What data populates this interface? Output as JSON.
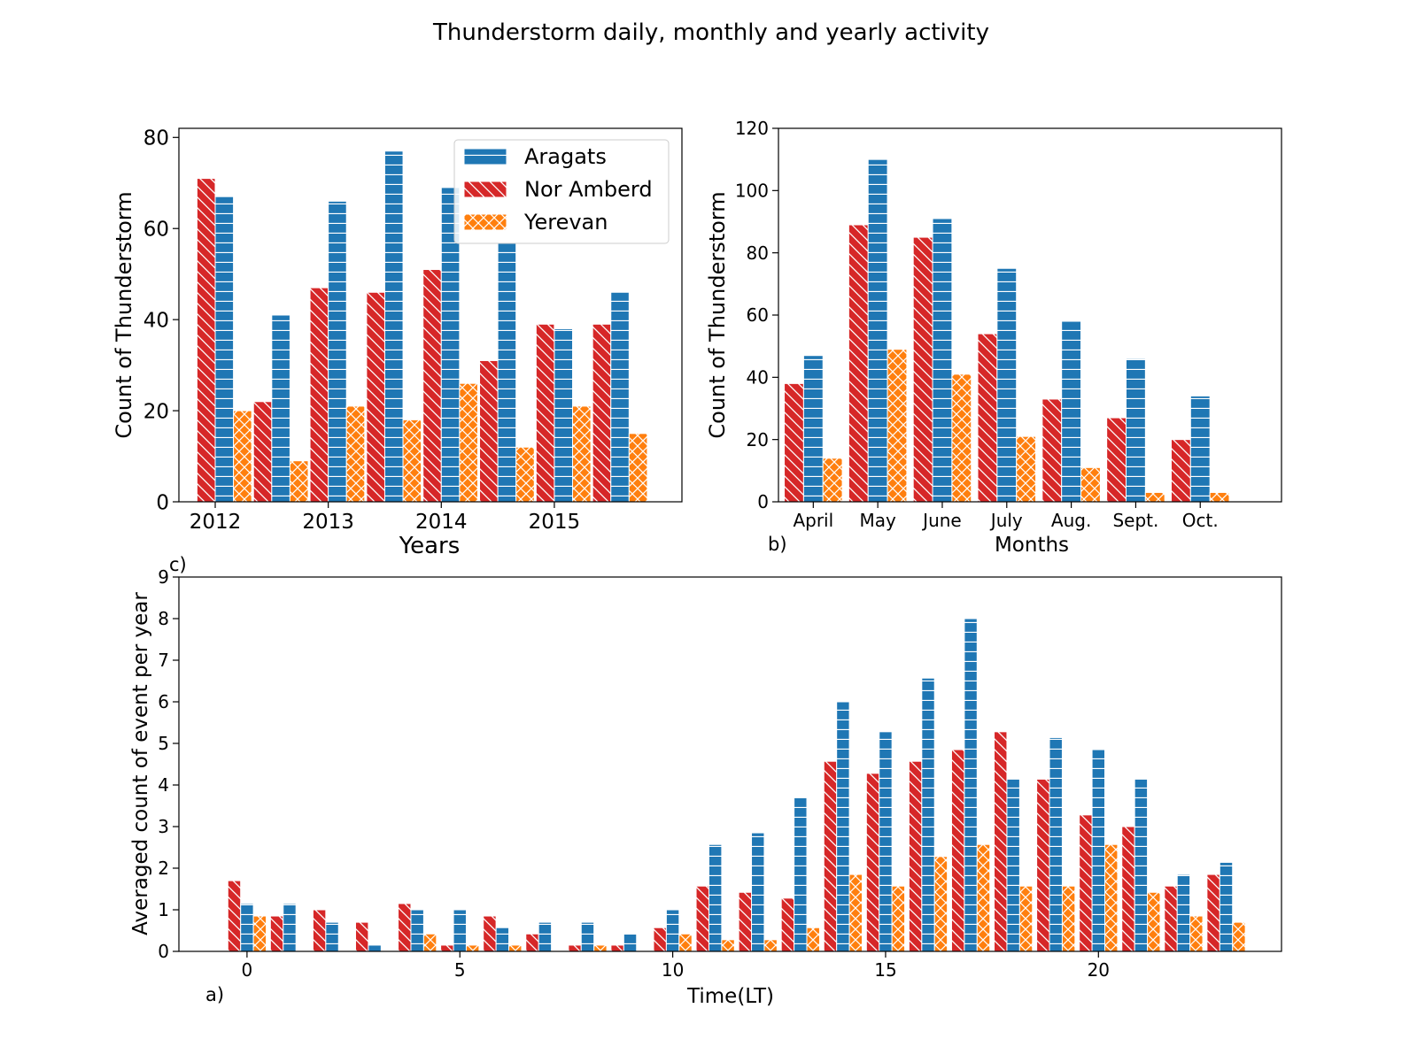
{
  "figure": {
    "title": "Thunderstorm daily, monthly and yearly activity"
  },
  "colors": {
    "Aragats": "#1f77b4",
    "Nor Amberd": "#d62728",
    "Yerevan": "#ff7f0e"
  },
  "chart_data": [
    {
      "id": "yearly",
      "type": "bar",
      "title": "",
      "xlabel": "Years",
      "ylabel": "Count of Thunderstorm",
      "panel_label": "",
      "ylim": [
        0,
        82
      ],
      "yticks": [
        0,
        20,
        40,
        60,
        80
      ],
      "xtick_labels": [
        "2012",
        "2013",
        "2014",
        "2015"
      ],
      "legend": {
        "placement": "top-right",
        "entries": [
          "Aragats",
          "Nor Amberd",
          "Yerevan"
        ]
      },
      "grid": false,
      "groups": 8,
      "series": [
        {
          "name": "Nor Amberd",
          "values": [
            71,
            22,
            47,
            46,
            51,
            31,
            39,
            39
          ]
        },
        {
          "name": "Aragats",
          "values": [
            67,
            41,
            66,
            77,
            69,
            57,
            38,
            46
          ]
        },
        {
          "name": "Yerevan",
          "values": [
            20,
            9,
            21,
            18,
            26,
            12,
            21,
            15
          ]
        }
      ]
    },
    {
      "id": "monthly",
      "type": "bar",
      "title": "",
      "xlabel": "Months",
      "ylabel": "Count of Thunderstorm",
      "panel_label": "b)",
      "ylim": [
        0,
        120
      ],
      "yticks": [
        0,
        20,
        40,
        60,
        80,
        100,
        120
      ],
      "categories": [
        "April",
        "May",
        "June",
        "July",
        "Aug.",
        "Sept.",
        "Oct."
      ],
      "grid": false,
      "series": [
        {
          "name": "Nor Amberd",
          "values": [
            38,
            89,
            85,
            54,
            33,
            27,
            20
          ]
        },
        {
          "name": "Aragats",
          "values": [
            47,
            110,
            91,
            75,
            58,
            46,
            34
          ]
        },
        {
          "name": "Yerevan",
          "values": [
            14,
            49,
            41,
            21,
            11,
            3,
            3
          ]
        }
      ]
    },
    {
      "id": "daily",
      "type": "bar",
      "title": "",
      "xlabel": "Time(LT)",
      "ylabel": "Averaged count of event per year",
      "panel_label": "a)",
      "panel_label_top": "c)",
      "ylim": [
        0,
        9
      ],
      "yticks": [
        0,
        1,
        2,
        3,
        4,
        5,
        6,
        7,
        8,
        9
      ],
      "xlim": [
        -1.6,
        24.3
      ],
      "xticks": [
        0,
        5,
        10,
        15,
        20
      ],
      "x": [
        0,
        1,
        2,
        3,
        4,
        5,
        6,
        7,
        8,
        9,
        10,
        11,
        12,
        13,
        14,
        15,
        16,
        17,
        18,
        19,
        20,
        21,
        22,
        23
      ],
      "grid": false,
      "series": [
        {
          "name": "Nor Amberd",
          "values": [
            1.7,
            0.85,
            1.0,
            0.7,
            1.15,
            0.15,
            0.85,
            0.42,
            0.15,
            0.15,
            0.57,
            1.57,
            1.42,
            1.28,
            4.57,
            4.28,
            4.57,
            4.85,
            5.28,
            4.14,
            3.28,
            3.0,
            1.57,
            1.85
          ]
        },
        {
          "name": "Aragats",
          "values": [
            1.15,
            1.15,
            0.7,
            0.15,
            1.0,
            1.0,
            0.57,
            0.7,
            0.7,
            0.42,
            1.0,
            2.57,
            2.85,
            3.71,
            6.0,
            5.28,
            6.57,
            8.0,
            4.14,
            5.14,
            4.85,
            4.14,
            1.85,
            2.14
          ]
        },
        {
          "name": "Yerevan",
          "values": [
            0.85,
            0,
            0,
            0,
            0.42,
            0.15,
            0.15,
            0,
            0.15,
            0,
            0.42,
            0.28,
            0.28,
            0.57,
            1.85,
            1.57,
            2.28,
            2.57,
            1.57,
            1.57,
            2.57,
            1.42,
            0.85,
            0.7
          ]
        }
      ]
    }
  ]
}
